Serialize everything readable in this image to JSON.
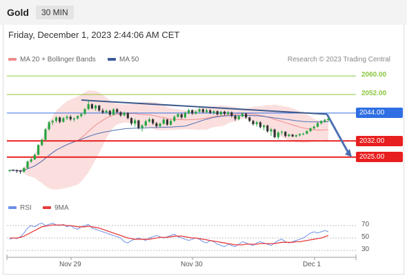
{
  "header": {
    "symbol": "Gold",
    "timeframe": "30 MIN",
    "datetime": "Friday, December 1, 2023 2:44:06 AM CET"
  },
  "legend": {
    "ma20_label": "MA 20 + Bollinger Bands",
    "ma50_label": "MA 50",
    "copyright": "Research © 2023 Trading Central",
    "rsi_label": "RSI",
    "rsi9_label": "9MA"
  },
  "colors": {
    "up": "#26a541",
    "down": "#333333",
    "ma50": "#4d6fb3",
    "ma20": "#f28b8b",
    "band": "#f9caca",
    "resistance_green": "#8cc63f",
    "support_red": "#e81f1f",
    "pivot_blue": "#2f6fe3",
    "trend": "#3c5a8c",
    "rsi": "#6b8fe8",
    "rsi9": "#e83b3b"
  },
  "chart_data": [
    {
      "type": "candlestick",
      "x_labels": [
        "Nov 29",
        "Nov 30",
        "Dec 1"
      ],
      "ylim": [
        2016,
        2063
      ],
      "levels": [
        {
          "value": 2060.0,
          "label": "2060.00",
          "role": "resistance"
        },
        {
          "value": 2052.0,
          "label": "2052.00",
          "role": "resistance"
        },
        {
          "value": 2044.0,
          "label": "2044.00",
          "role": "pivot"
        },
        {
          "value": 2032.0,
          "label": "2032.00",
          "role": "support"
        },
        {
          "value": 2025.0,
          "label": "2025.00",
          "role": "support"
        }
      ],
      "candles": [
        [
          2019.0,
          2019.6,
          2018.6,
          2019.4
        ],
        [
          2019.4,
          2019.8,
          2018.9,
          2019.2
        ],
        [
          2019.2,
          2019.7,
          2018.2,
          2019.0
        ],
        [
          2019.0,
          2019.4,
          2017.8,
          2018.7
        ],
        [
          2018.7,
          2020.6,
          2018.3,
          2020.3
        ],
        [
          2020.3,
          2023.5,
          2020.0,
          2023.1
        ],
        [
          2023.1,
          2024.6,
          2022.5,
          2024.0
        ],
        [
          2024.0,
          2026.5,
          2023.7,
          2026.0
        ],
        [
          2026.0,
          2030.5,
          2025.8,
          2030.2
        ],
        [
          2030.2,
          2033.0,
          2029.7,
          2032.5
        ],
        [
          2032.5,
          2037.5,
          2032.0,
          2037.0
        ],
        [
          2037.0,
          2040.6,
          2036.4,
          2040.0
        ],
        [
          2040.0,
          2041.2,
          2038.8,
          2040.6
        ],
        [
          2040.6,
          2042.6,
          2039.8,
          2042.1
        ],
        [
          2042.1,
          2042.5,
          2039.5,
          2040.2
        ],
        [
          2040.2,
          2042.3,
          2039.9,
          2041.8
        ],
        [
          2041.8,
          2043.2,
          2041.0,
          2042.4
        ],
        [
          2042.4,
          2043.1,
          2040.6,
          2041.3
        ],
        [
          2041.3,
          2042.1,
          2040.3,
          2041.7
        ],
        [
          2041.7,
          2043.1,
          2041.2,
          2042.7
        ],
        [
          2042.7,
          2044.1,
          2042.1,
          2043.6
        ],
        [
          2043.6,
          2046.1,
          2043.2,
          2045.7
        ],
        [
          2045.7,
          2049.6,
          2045.3,
          2047.8
        ],
        [
          2047.8,
          2048.2,
          2045.6,
          2046.0
        ],
        [
          2046.0,
          2047.6,
          2045.0,
          2047.2
        ],
        [
          2047.2,
          2047.5,
          2044.5,
          2045.1
        ],
        [
          2045.1,
          2046.0,
          2043.6,
          2044.2
        ],
        [
          2044.2,
          2045.5,
          2043.7,
          2045.0
        ],
        [
          2045.0,
          2045.3,
          2042.7,
          2043.3
        ],
        [
          2043.3,
          2046.1,
          2043.0,
          2045.6
        ],
        [
          2045.6,
          2046.2,
          2043.9,
          2044.4
        ],
        [
          2044.4,
          2044.8,
          2042.4,
          2043.0
        ],
        [
          2043.0,
          2044.6,
          2042.6,
          2044.1
        ],
        [
          2044.1,
          2044.4,
          2041.3,
          2041.8
        ],
        [
          2041.8,
          2042.2,
          2038.7,
          2039.5
        ],
        [
          2039.5,
          2041.6,
          2038.2,
          2040.8
        ],
        [
          2040.8,
          2041.1,
          2037.0,
          2037.6
        ],
        [
          2037.6,
          2039.2,
          2036.1,
          2038.6
        ],
        [
          2038.6,
          2041.1,
          2038.1,
          2040.4
        ],
        [
          2040.4,
          2042.1,
          2039.8,
          2041.3
        ],
        [
          2041.3,
          2041.7,
          2038.9,
          2039.6
        ],
        [
          2039.6,
          2040.2,
          2037.6,
          2038.3
        ],
        [
          2038.3,
          2039.9,
          2037.8,
          2039.4
        ],
        [
          2039.4,
          2041.8,
          2039.0,
          2041.2
        ],
        [
          2041.2,
          2041.5,
          2038.5,
          2039.0
        ],
        [
          2039.0,
          2041.2,
          2038.6,
          2040.6
        ],
        [
          2040.6,
          2043.0,
          2040.2,
          2042.4
        ],
        [
          2042.4,
          2044.0,
          2042.0,
          2043.5
        ],
        [
          2043.5,
          2043.8,
          2041.4,
          2042.1
        ],
        [
          2042.1,
          2044.6,
          2041.7,
          2044.0
        ],
        [
          2044.0,
          2045.8,
          2043.5,
          2045.2
        ],
        [
          2045.2,
          2045.6,
          2043.2,
          2043.8
        ],
        [
          2043.8,
          2045.1,
          2043.3,
          2044.6
        ],
        [
          2044.6,
          2046.2,
          2044.1,
          2045.6
        ],
        [
          2045.6,
          2046.0,
          2043.9,
          2044.4
        ],
        [
          2044.4,
          2045.8,
          2043.8,
          2045.2
        ],
        [
          2045.2,
          2045.6,
          2043.6,
          2044.1
        ],
        [
          2044.1,
          2045.2,
          2043.3,
          2044.8
        ],
        [
          2044.8,
          2045.1,
          2042.9,
          2043.4
        ],
        [
          2043.4,
          2044.9,
          2043.0,
          2044.6
        ],
        [
          2044.6,
          2045.0,
          2043.0,
          2043.6
        ],
        [
          2043.6,
          2044.9,
          2043.1,
          2044.3
        ],
        [
          2044.3,
          2044.7,
          2042.1,
          2042.8
        ],
        [
          2042.8,
          2043.3,
          2040.7,
          2041.4
        ],
        [
          2041.4,
          2043.1,
          2040.9,
          2042.6
        ],
        [
          2042.6,
          2044.3,
          2042.2,
          2043.7
        ],
        [
          2043.7,
          2044.1,
          2041.5,
          2042.1
        ],
        [
          2042.1,
          2042.5,
          2040.1,
          2040.6
        ],
        [
          2040.6,
          2041.0,
          2038.6,
          2039.2
        ],
        [
          2039.2,
          2040.6,
          2038.2,
          2040.0
        ],
        [
          2040.0,
          2040.5,
          2037.4,
          2037.9
        ],
        [
          2037.9,
          2039.1,
          2036.6,
          2038.6
        ],
        [
          2038.6,
          2039.0,
          2035.5,
          2036.1
        ],
        [
          2036.1,
          2037.6,
          2034.1,
          2036.9
        ],
        [
          2036.9,
          2037.3,
          2033.1,
          2033.6
        ],
        [
          2033.6,
          2036.1,
          2032.7,
          2035.6
        ],
        [
          2035.6,
          2036.4,
          2034.6,
          2035.9
        ],
        [
          2035.9,
          2036.2,
          2033.5,
          2034.1
        ],
        [
          2034.1,
          2035.1,
          2033.6,
          2034.7
        ],
        [
          2034.7,
          2035.0,
          2033.6,
          2033.9
        ],
        [
          2033.9,
          2034.8,
          2033.5,
          2034.4
        ],
        [
          2034.4,
          2035.3,
          2033.9,
          2034.9
        ],
        [
          2034.9,
          2035.5,
          2034.4,
          2035.1
        ],
        [
          2035.1,
          2036.6,
          2034.8,
          2036.2
        ],
        [
          2036.2,
          2037.8,
          2035.8,
          2037.4
        ],
        [
          2037.4,
          2038.6,
          2036.9,
          2038.1
        ],
        [
          2038.1,
          2040.1,
          2037.8,
          2039.6
        ],
        [
          2039.6,
          2040.9,
          2039.0,
          2040.5
        ],
        [
          2040.5,
          2041.6,
          2039.8,
          2041.0
        ],
        [
          2041.0,
          2042.2,
          2040.4,
          2041.6
        ]
      ]
    },
    {
      "type": "line",
      "title": "RSI",
      "ylim": [
        20,
        80
      ],
      "yticks": [
        70,
        50,
        30
      ],
      "series": [
        {
          "name": "RSI",
          "values": [
            48,
            50,
            49,
            52,
            58,
            66,
            70,
            68,
            72,
            74,
            70,
            72,
            74,
            71,
            70,
            72,
            68,
            70,
            66,
            64,
            68,
            70,
            72,
            66,
            64,
            62,
            60,
            58,
            56,
            54,
            52,
            50,
            44,
            42,
            46,
            48,
            50,
            48,
            46,
            50,
            52,
            54,
            52,
            50,
            52,
            54,
            56,
            52,
            50,
            48,
            46,
            48,
            50,
            48,
            44,
            42,
            46,
            44,
            40,
            38,
            36,
            40,
            38,
            36,
            40,
            44,
            42,
            40,
            38,
            42,
            44,
            42,
            40,
            38,
            42,
            46,
            48,
            44,
            42,
            44,
            46,
            48,
            50,
            54,
            58,
            60,
            58,
            60,
            62,
            60
          ]
        },
        {
          "name": "9MA",
          "values": [
            50,
            50,
            50,
            51,
            53,
            56,
            59,
            62,
            65,
            68,
            69,
            70,
            71,
            71,
            71,
            71,
            70,
            70,
            69,
            68,
            68,
            68,
            69,
            68,
            67,
            66,
            64,
            62,
            60,
            58,
            56,
            54,
            52,
            50,
            49,
            48,
            48,
            48,
            48,
            48,
            49,
            50,
            51,
            51,
            51,
            52,
            53,
            53,
            53,
            52,
            51,
            50,
            50,
            49,
            48,
            47,
            46,
            45,
            44,
            43,
            42,
            41,
            40,
            39,
            39,
            39,
            40,
            40,
            40,
            40,
            41,
            41,
            41,
            41,
            41,
            42,
            43,
            43,
            43,
            43,
            44,
            44,
            45,
            46,
            47,
            48,
            49,
            50,
            52,
            54
          ]
        }
      ]
    }
  ]
}
